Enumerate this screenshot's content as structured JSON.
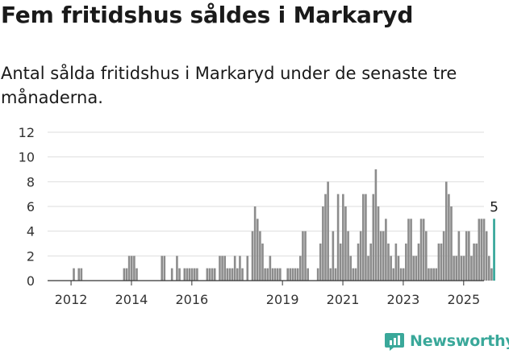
{
  "title": "Fem fritidshus såldes i Markaryd",
  "subtitle": "Antal sålda fritidshus i Markaryd under de senaste tre månaderna.",
  "brand": {
    "name": "Newsworthy",
    "logo_icon": "newsworthy-chart-icon"
  },
  "colors": {
    "bar": "#8c8c8c",
    "highlight": "#2fa396",
    "grid": "#dddddd",
    "brand": "#3aa89a"
  },
  "chart_data": {
    "type": "bar",
    "ylim": [
      0,
      12
    ],
    "y_ticks": [
      0,
      2,
      4,
      6,
      8,
      10,
      12
    ],
    "x_ticks": [
      "2012",
      "2014",
      "2016",
      "2019",
      "2021",
      "2023",
      "2025"
    ],
    "x_tick_months": [
      0,
      24,
      48,
      84,
      108,
      132,
      156
    ],
    "start_month": "2012-01",
    "values": [
      0,
      1,
      0,
      1,
      1,
      0,
      0,
      0,
      0,
      0,
      0,
      0,
      0,
      0,
      0,
      0,
      0,
      0,
      0,
      0,
      0,
      1,
      1,
      2,
      2,
      2,
      1,
      0,
      0,
      0,
      0,
      0,
      0,
      0,
      0,
      0,
      2,
      2,
      0,
      0,
      1,
      0,
      2,
      1,
      0,
      1,
      1,
      1,
      1,
      1,
      1,
      0,
      0,
      0,
      1,
      1,
      1,
      1,
      0,
      2,
      2,
      2,
      1,
      1,
      1,
      2,
      1,
      2,
      1,
      0,
      2,
      0,
      4,
      6,
      5,
      4,
      3,
      1,
      1,
      2,
      1,
      1,
      1,
      1,
      0,
      0,
      1,
      1,
      1,
      1,
      1,
      2,
      4,
      4,
      1,
      0,
      0,
      0,
      1,
      3,
      6,
      7,
      8,
      1,
      4,
      1,
      7,
      3,
      7,
      6,
      4,
      2,
      1,
      1,
      3,
      4,
      7,
      7,
      2,
      3,
      7,
      9,
      6,
      4,
      4,
      5,
      3,
      2,
      1,
      3,
      2,
      1,
      1,
      3,
      5,
      5,
      2,
      2,
      3,
      5,
      5,
      4,
      1,
      1,
      1,
      1,
      3,
      3,
      4,
      8,
      7,
      6,
      2,
      2,
      4,
      2,
      2,
      4,
      4,
      2,
      3,
      3,
      5,
      5,
      5,
      4,
      2,
      1,
      5
    ],
    "last_label": "5"
  }
}
